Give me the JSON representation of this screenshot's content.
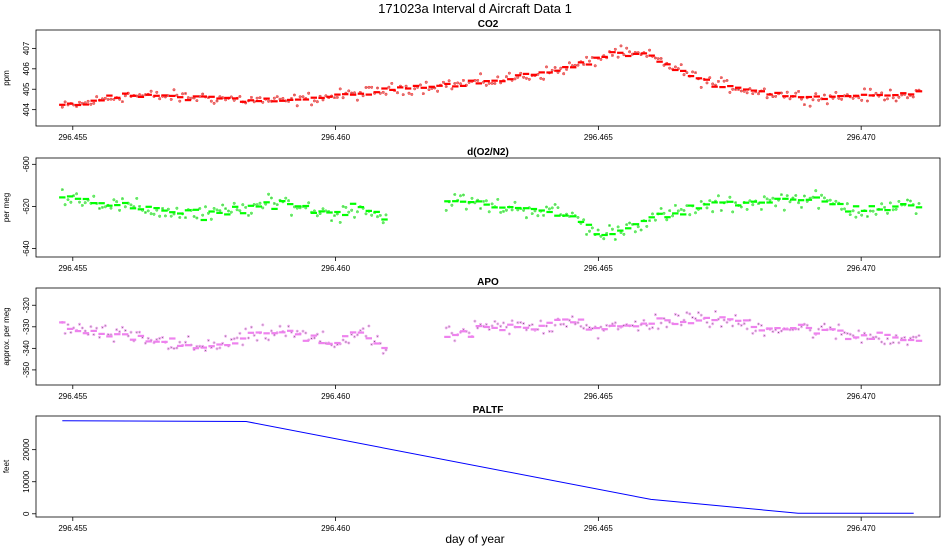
{
  "title": "171023a   Interval d Aircraft Data 1",
  "xlabel": "day of year",
  "chart_data": [
    {
      "type": "scatter",
      "title": "CO2",
      "ylabel": "ppm",
      "color": "#ff0000",
      "xlim": [
        296.4543,
        296.4715
      ],
      "ylim": [
        403.2,
        407.9
      ],
      "xticks": [
        "296.455",
        "296.460",
        "296.465",
        "296.470"
      ],
      "yticks": [
        "404",
        "405",
        "406",
        "407"
      ],
      "trend": {
        "x": [
          296.4548,
          296.456,
          296.4575,
          296.459,
          296.4605,
          296.4615,
          296.463,
          296.464,
          296.4648,
          296.4653,
          296.466,
          296.467,
          296.468,
          296.469,
          296.4705,
          296.471
        ],
        "y": [
          404.1,
          404.7,
          404.6,
          404.4,
          404.8,
          405.1,
          405.4,
          405.8,
          406.3,
          406.8,
          406.6,
          405.4,
          404.9,
          404.6,
          404.7,
          404.8
        ]
      },
      "gap": null,
      "dot_jitter": 0.45,
      "tick_jitter": 0.2
    },
    {
      "type": "scatter",
      "title": "d(O2/N2)",
      "ylabel": "per meg",
      "color": "#00ff00",
      "xlim": [
        296.4543,
        296.4715
      ],
      "ylim": [
        -644,
        -597
      ],
      "xticks": [
        "296.455",
        "296.460",
        "296.465",
        "296.470"
      ],
      "yticks": [
        "-600",
        "-620",
        "-640"
      ],
      "trend": {
        "x": [
          296.4548,
          296.4555,
          296.4565,
          296.4575,
          296.4585,
          296.459,
          296.46,
          296.4605,
          296.4609,
          296.4622,
          296.463,
          296.464,
          296.4645,
          296.465,
          296.466,
          296.467,
          296.468,
          296.469,
          296.47,
          296.471
        ],
        "y": [
          -614,
          -618,
          -622,
          -624,
          -620,
          -618,
          -624,
          -620,
          -626,
          -617,
          -620,
          -622,
          -624,
          -634,
          -626,
          -620,
          -618,
          -616,
          -622,
          -620
        ]
      },
      "gap": [
        296.461,
        296.4621
      ],
      "dot_jitter": 6,
      "tick_jitter": 3
    },
    {
      "type": "scatter",
      "title": "APO",
      "ylabel": "approx. per meg",
      "color": "#ee82ee",
      "xlim": [
        296.4543,
        296.4715
      ],
      "ylim": [
        -357,
        -312
      ],
      "xticks": [
        "296.455",
        "296.460",
        "296.465",
        "296.470"
      ],
      "yticks": [
        "-320",
        "-330",
        "-340",
        "-350"
      ],
      "trend": {
        "x": [
          296.4548,
          296.4555,
          296.4565,
          296.4575,
          296.4585,
          296.459,
          296.46,
          296.4605,
          296.4609,
          296.4622,
          296.463,
          296.464,
          296.4645,
          296.465,
          296.466,
          296.467,
          296.468,
          296.469,
          296.47,
          296.471
        ],
        "y": [
          -330,
          -333,
          -336,
          -340,
          -334,
          -332,
          -338,
          -332,
          -340,
          -334,
          -330,
          -330,
          -326,
          -332,
          -328,
          -326,
          -330,
          -331,
          -334,
          -336
        ]
      },
      "gap": [
        296.461,
        296.4621
      ],
      "dot_jitter": 6,
      "tick_jitter": 3
    },
    {
      "type": "line",
      "title": "PALTF",
      "ylabel": "feet",
      "color": "#0000ff",
      "xlim": [
        296.4543,
        296.4715
      ],
      "ylim": [
        -1000,
        30500
      ],
      "xticks": [
        "296.455",
        "296.460",
        "296.465",
        "296.470"
      ],
      "yticks": [
        "0",
        "10000",
        "20000"
      ],
      "x": [
        296.4548,
        296.4583,
        296.466,
        296.4688,
        296.471
      ],
      "y": [
        29000,
        28800,
        4500,
        200,
        200
      ]
    }
  ]
}
